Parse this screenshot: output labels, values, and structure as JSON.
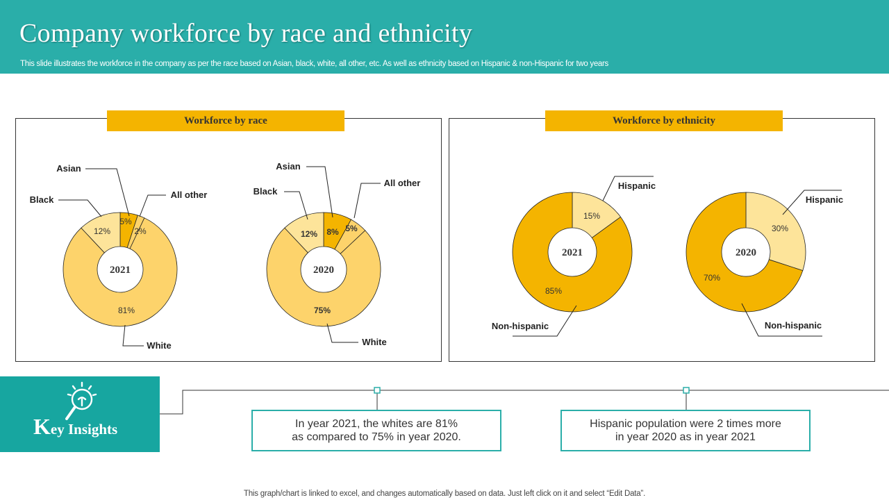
{
  "header": {
    "title": "Company workforce by race and ethnicity",
    "subtitle": "This slide illustrates the workforce in the company as per the race based on Asian, black, white, all other, etc. As well as ethnicity based on Hispanic & non-Hispanic for two years"
  },
  "panels": {
    "race_title": "Workforce by race",
    "ethnicity_title": "Workforce by ethnicity"
  },
  "colors": {
    "header_bg": "#2aaea9",
    "accent": "#f4b400",
    "light_1": "#fdd36b",
    "light_2": "#fde49a",
    "teal_dark": "#17a6a0"
  },
  "chart_data": [
    {
      "type": "pie",
      "style": "donut",
      "center_label": "2021",
      "categories": [
        "White",
        "Black",
        "Asian",
        "All other"
      ],
      "values": [
        81,
        12,
        5,
        2
      ],
      "value_labels": [
        "81%",
        "12%",
        "5%",
        "2%"
      ]
    },
    {
      "type": "pie",
      "style": "donut",
      "center_label": "2020",
      "categories": [
        "White",
        "Black",
        "Asian",
        "All other"
      ],
      "values": [
        75,
        12,
        8,
        5
      ],
      "value_labels": [
        "75%",
        "12%",
        "8%",
        "5%"
      ]
    },
    {
      "type": "pie",
      "style": "donut",
      "center_label": "2021",
      "categories": [
        "Hispanic",
        "Non-hispanic"
      ],
      "values": [
        15,
        85
      ],
      "value_labels": [
        "15%",
        "85%"
      ]
    },
    {
      "type": "pie",
      "style": "donut",
      "center_label": "2020",
      "categories": [
        "Hispanic",
        "Non-hispanic"
      ],
      "values": [
        30,
        70
      ],
      "value_labels": [
        "30%",
        "70%"
      ]
    }
  ],
  "insights": {
    "heading_initial": "K",
    "heading_rest": "ey Insights",
    "icon": "lightbulb-magnifier-icon",
    "items": [
      {
        "line1": "In year 2021, the whites are 81%",
        "line2": "as compared to 75% in year 2020."
      },
      {
        "line1": "Hispanic population were 2 times more",
        "line2": "in year 2020 as in year 2021"
      }
    ]
  },
  "footer": "This graph/chart is linked to excel, and changes automatically based on data. Just left click on it and select “Edit Data”."
}
